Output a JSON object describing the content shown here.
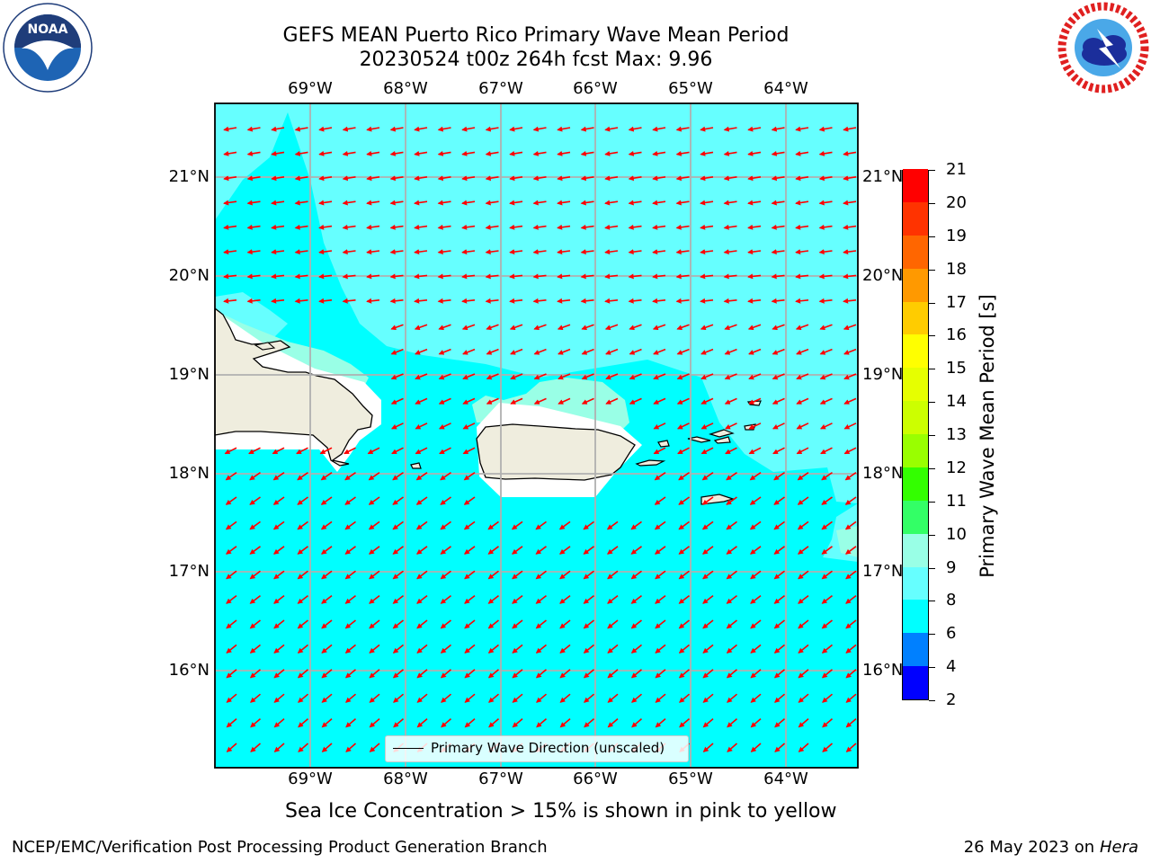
{
  "header": {
    "title_line1": "GEFS MEAN Puerto Rico Primary Wave Mean Period",
    "title_line2": "20230524 t00z 264h fcst   Max: 9.96"
  },
  "map": {
    "lon_labels": [
      "69°W",
      "68°W",
      "67°W",
      "66°W",
      "65°W",
      "64°W"
    ],
    "lat_labels": [
      "21°N",
      "20°N",
      "19°N",
      "18°N",
      "17°N",
      "16°N"
    ],
    "ocean_color": "#00ffff",
    "ocean_light_color": "#66ffff",
    "ocean_pale_color": "#99ffe6",
    "land_color": "#efedde",
    "arrow_color": "#ff0000",
    "grid_color": "#b0b0b0",
    "islands": [
      "Hispaniola",
      "Puerto Rico",
      "Virgin Islands",
      "St. Croix"
    ]
  },
  "legend": {
    "label": "Primary Wave Direction (unscaled)"
  },
  "colorbar": {
    "title": "Primary Wave Mean Period [s]",
    "ticks": [
      "2",
      "4",
      "6",
      "8",
      "9",
      "10",
      "11",
      "12",
      "13",
      "14",
      "15",
      "16",
      "17",
      "18",
      "19",
      "20",
      "21"
    ],
    "colors": [
      "#0000ff",
      "#0080ff",
      "#00ffff",
      "#66ffff",
      "#99ffe6",
      "#33ff66",
      "#33ff00",
      "#99ff00",
      "#ccff00",
      "#e6ff00",
      "#ffff00",
      "#ffcc00",
      "#ff9900",
      "#ff6600",
      "#ff3300",
      "#ff0000"
    ]
  },
  "footer": {
    "note": "Sea Ice Concentration > 15% is shown in pink to yellow",
    "credit": "NCEP/EMC/Verification Post Processing Product Generation Branch",
    "date": "26 May 2023 on",
    "host": "Hera"
  }
}
